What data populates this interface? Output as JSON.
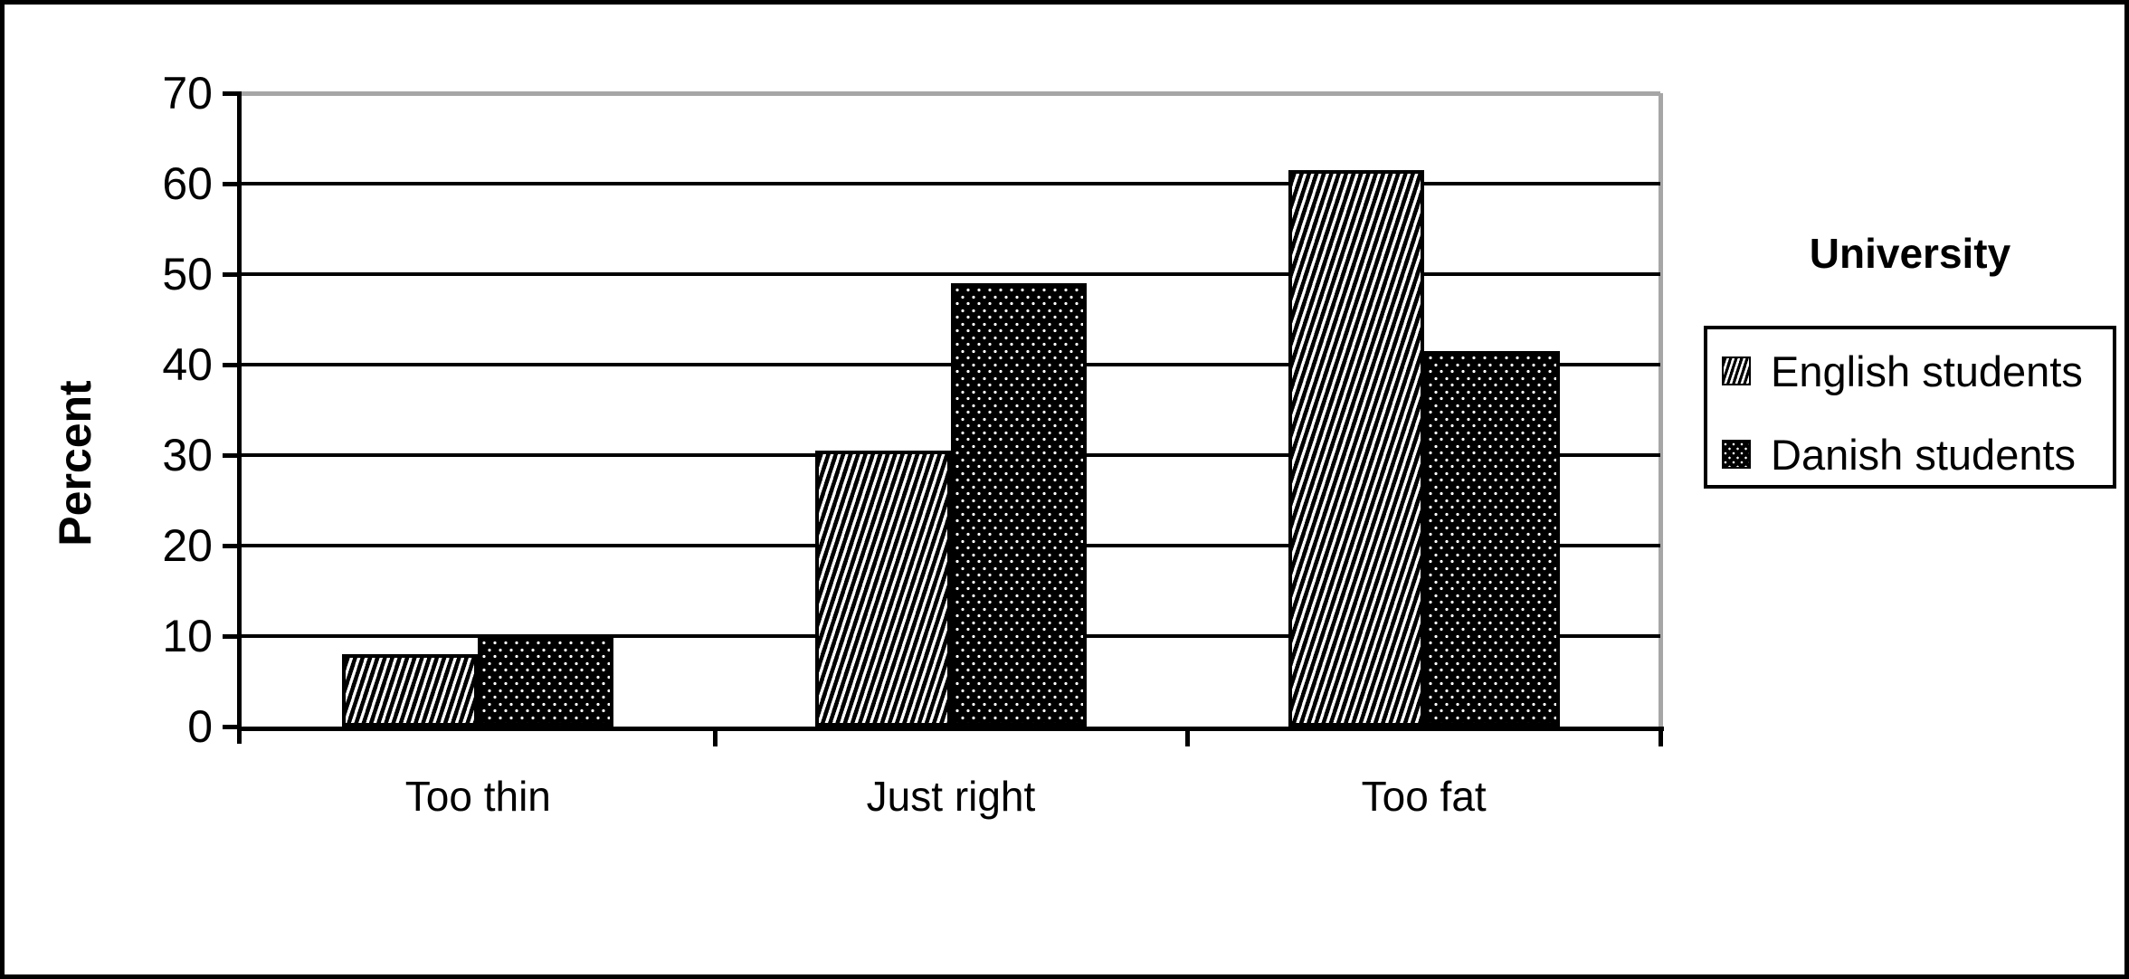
{
  "chart_data": {
    "type": "bar",
    "title": "",
    "categories": [
      "Too thin",
      "Just right",
      "Too fat"
    ],
    "series": [
      {
        "name": "English students",
        "pattern": "diagonal-hatch",
        "values": [
          8,
          30.5,
          61.5
        ]
      },
      {
        "name": "Danish students",
        "pattern": "dotted-black",
        "values": [
          10,
          49,
          41.5
        ]
      }
    ],
    "ylabel": "Percent",
    "xlabel": "",
    "yticks": [
      0,
      10,
      20,
      30,
      40,
      50,
      60,
      70
    ],
    "ylim": [
      0,
      70
    ],
    "grid": "horizontal",
    "legend_title": "University",
    "legend_position": "right",
    "legend_entries": [
      "English students",
      "Danish students"
    ]
  },
  "colors": {
    "bar_fill": "#000000",
    "pattern_background": "#ffffff",
    "gridline": "#000000",
    "shadow_border": "#a6a6a6",
    "background": "#ffffff",
    "text": "#000000"
  }
}
